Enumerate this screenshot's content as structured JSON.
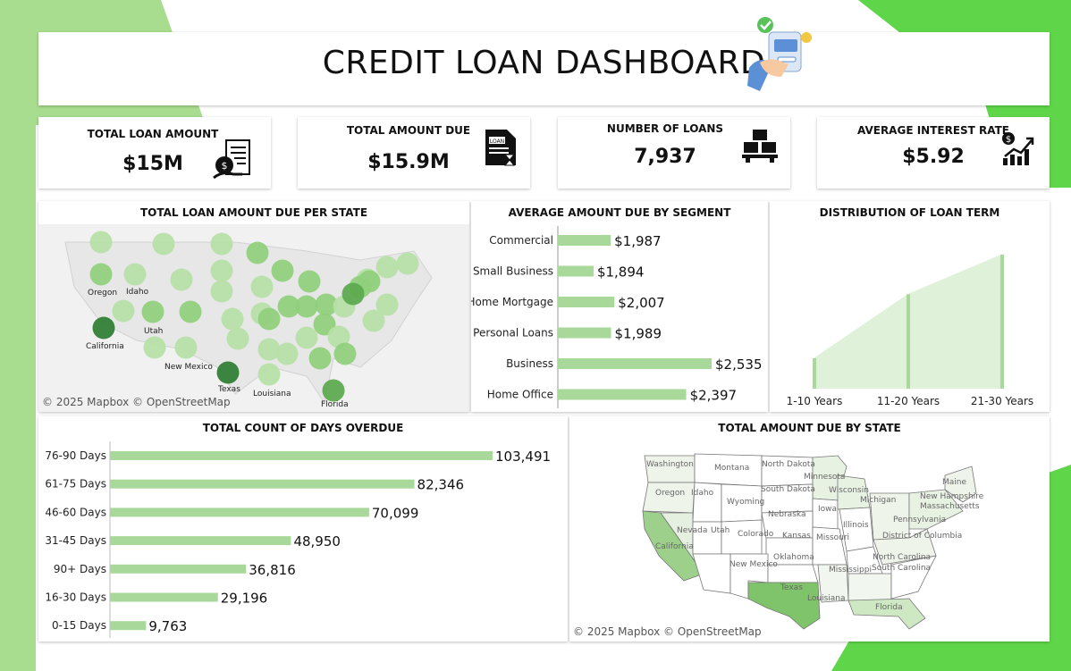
{
  "dashboard": {
    "title": "CREDIT LOAN DASHBOARD"
  },
  "theme": {
    "accent": "#5fd64a",
    "bar": "#a9d99a",
    "area": "#dff1d9",
    "dark_bubble": "#2e7d32"
  },
  "kpis": [
    {
      "label": "TOTAL LOAN AMOUNT",
      "value": "$15M",
      "icon": "loan-money-icon"
    },
    {
      "label": "TOTAL AMOUNT DUE",
      "value": "$15.9M",
      "icon": "loan-document-icon"
    },
    {
      "label": "NUMBER OF LOANS",
      "value": "7,937",
      "icon": "boxes-icon"
    },
    {
      "label": "AVERAGE INTEREST RATE",
      "value": "$5.92",
      "icon": "growth-chart-icon"
    }
  ],
  "panels": {
    "state_bubble": {
      "title": "TOTAL LOAN AMOUNT DUE PER STATE",
      "attribution": "© 2025 Mapbox © OpenStreetMap",
      "labels": [
        "Oregon",
        "Idaho",
        "California",
        "Utah",
        "New Mexico",
        "Texas",
        "Louisiana",
        "Florida"
      ]
    },
    "segment": {
      "title": "AVERAGE AMOUNT DUE BY SEGMENT"
    },
    "loan_term": {
      "title": "DISTRIBUTION OF LOAN TERM"
    },
    "overdue": {
      "title": "TOTAL COUNT OF DAYS OVERDUE"
    },
    "state_map": {
      "title": "TOTAL AMOUNT DUE BY STATE",
      "attribution": "© 2025 Mapbox © OpenStreetMap",
      "labels": [
        "Washington",
        "Montana",
        "North Dakota",
        "Minnesota",
        "Oregon",
        "Idaho",
        "South Dakota",
        "Wisconsin",
        "Wyoming",
        "Michigan",
        "New Hampshire",
        "Maine",
        "Nebraska",
        "Iowa",
        "Pennsylvania",
        "Massachusetts",
        "Nevada",
        "Utah",
        "Colorado",
        "Kansas",
        "Missouri",
        "Illinois",
        "District of Columbia",
        "California",
        "North Carolina",
        "Oklahoma",
        "New Mexico",
        "South Carolina",
        "Mississippi",
        "Texas",
        "Louisiana",
        "Florida"
      ]
    }
  },
  "chart_data": [
    {
      "type": "bar",
      "title": "AVERAGE AMOUNT DUE BY SEGMENT",
      "orientation": "horizontal",
      "categories": [
        "Commercial",
        "Small Business",
        "Home Mortgage",
        "Personal Loans",
        "Business",
        "Home Office"
      ],
      "values": [
        1987,
        1894,
        2007,
        1989,
        2535,
        2397
      ],
      "labels": [
        "$1,987",
        "$1,894",
        "$2,007",
        "$1,989",
        "$2,535",
        "$2,397"
      ]
    },
    {
      "type": "area",
      "title": "DISTRIBUTION OF LOAN TERM",
      "categories": [
        "1-10 Years",
        "11-20 Years",
        "21-30 Years"
      ],
      "values": [
        1,
        3.1,
        4.4
      ]
    },
    {
      "type": "bar",
      "title": "TOTAL COUNT OF DAYS OVERDUE",
      "orientation": "horizontal",
      "categories": [
        "76-90 Days",
        "61-75 Days",
        "46-60 Days",
        "31-45 Days",
        "90+ Days",
        "16-30 Days",
        "0-15 Days"
      ],
      "values": [
        103491,
        82346,
        70099,
        48950,
        36816,
        29196,
        9763
      ],
      "labels": [
        "103,491",
        "82,346",
        "70,099",
        "48,950",
        "36,816",
        "29,196",
        "9,763"
      ]
    }
  ]
}
